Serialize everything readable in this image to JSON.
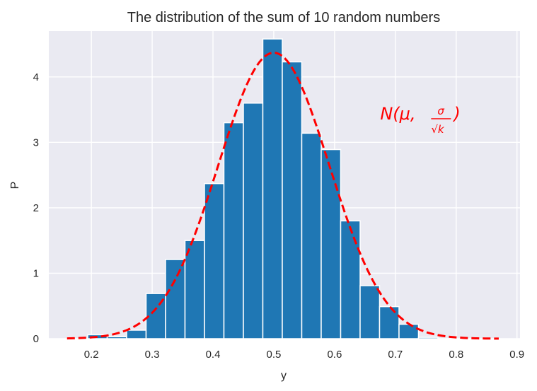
{
  "chart_data": {
    "type": "bar",
    "title": "The distribution of the sum of 10 random numbers",
    "xlabel": "y",
    "ylabel": "P",
    "xlim": [
      0.13,
      0.905
    ],
    "ylim": [
      0,
      4.7
    ],
    "grid": true,
    "x_ticks": [
      0.2,
      0.3,
      0.4,
      0.5,
      0.6,
      0.7,
      0.8,
      0.9
    ],
    "y_ticks": [
      0,
      1,
      2,
      3,
      4
    ],
    "bin_width": 0.032,
    "bins": [
      {
        "left": 0.194,
        "right": 0.226,
        "value": 0.06
      },
      {
        "left": 0.226,
        "right": 0.258,
        "value": 0.03
      },
      {
        "left": 0.258,
        "right": 0.29,
        "value": 0.13
      },
      {
        "left": 0.29,
        "right": 0.322,
        "value": 0.69
      },
      {
        "left": 0.322,
        "right": 0.354,
        "value": 1.21
      },
      {
        "left": 0.354,
        "right": 0.386,
        "value": 1.5
      },
      {
        "left": 0.386,
        "right": 0.418,
        "value": 2.37
      },
      {
        "left": 0.418,
        "right": 0.45,
        "value": 3.3
      },
      {
        "left": 0.45,
        "right": 0.482,
        "value": 3.6
      },
      {
        "left": 0.482,
        "right": 0.514,
        "value": 4.58
      },
      {
        "left": 0.514,
        "right": 0.546,
        "value": 4.23
      },
      {
        "left": 0.546,
        "right": 0.578,
        "value": 3.14
      },
      {
        "left": 0.578,
        "right": 0.61,
        "value": 2.89
      },
      {
        "left": 0.61,
        "right": 0.642,
        "value": 1.8
      },
      {
        "left": 0.642,
        "right": 0.674,
        "value": 0.81
      },
      {
        "left": 0.674,
        "right": 0.706,
        "value": 0.49
      },
      {
        "left": 0.706,
        "right": 0.738,
        "value": 0.22
      },
      {
        "left": 0.738,
        "right": 0.77,
        "value": 0.02
      }
    ],
    "curve": {
      "type": "normal_pdf",
      "mu": 0.5,
      "sigma": 0.0913,
      "x_range": [
        0.16,
        0.87
      ],
      "style": "dashed",
      "color": "#ff0000"
    },
    "annotation": {
      "text": "N(μ, σ/√k)",
      "position_data": [
        0.675,
        3.35
      ]
    },
    "bar_color": "#1f77b4",
    "background_color": "#eaeaf2",
    "grid_color": "#ffffff"
  }
}
